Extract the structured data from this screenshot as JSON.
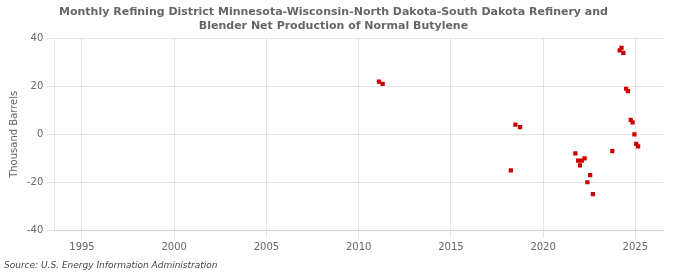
{
  "chart_data": {
    "type": "scatter",
    "title": "Monthly Refining District Minnesota-Wisconsin-North Dakota-South Dakota Refinery and\nBlender Net Production of Normal Butylene",
    "ylabel": "Thousand Barrels",
    "annotation": "Source: U.S. Energy Information Administration",
    "x": [
      2011.1,
      2011.3,
      2018.5,
      2018.75,
      2018.25,
      2021.75,
      2021.9,
      2022.0,
      2022.1,
      2022.25,
      2022.4,
      2022.55,
      2022.7,
      2023.75,
      2024.15,
      2024.25,
      2024.35,
      2024.5,
      2024.6,
      2024.75,
      2024.85,
      2024.95,
      2025.05,
      2025.15
    ],
    "values": [
      22,
      21,
      4,
      3,
      -15,
      -8,
      -11,
      -13,
      -11,
      -10,
      -20,
      -17,
      -25,
      -7,
      35,
      36,
      34,
      19,
      18,
      6,
      5,
      0,
      -4,
      -5
    ],
    "color": "#cc0000",
    "marker": "square",
    "xlim": [
      1993.5,
      2026.5
    ],
    "xticks": [
      1995,
      2000,
      2005,
      2010,
      2015,
      2020,
      2025
    ],
    "ylim": [
      -40,
      40
    ],
    "yticks": [
      -40,
      -20,
      0,
      20,
      40
    ],
    "grid": true
  }
}
